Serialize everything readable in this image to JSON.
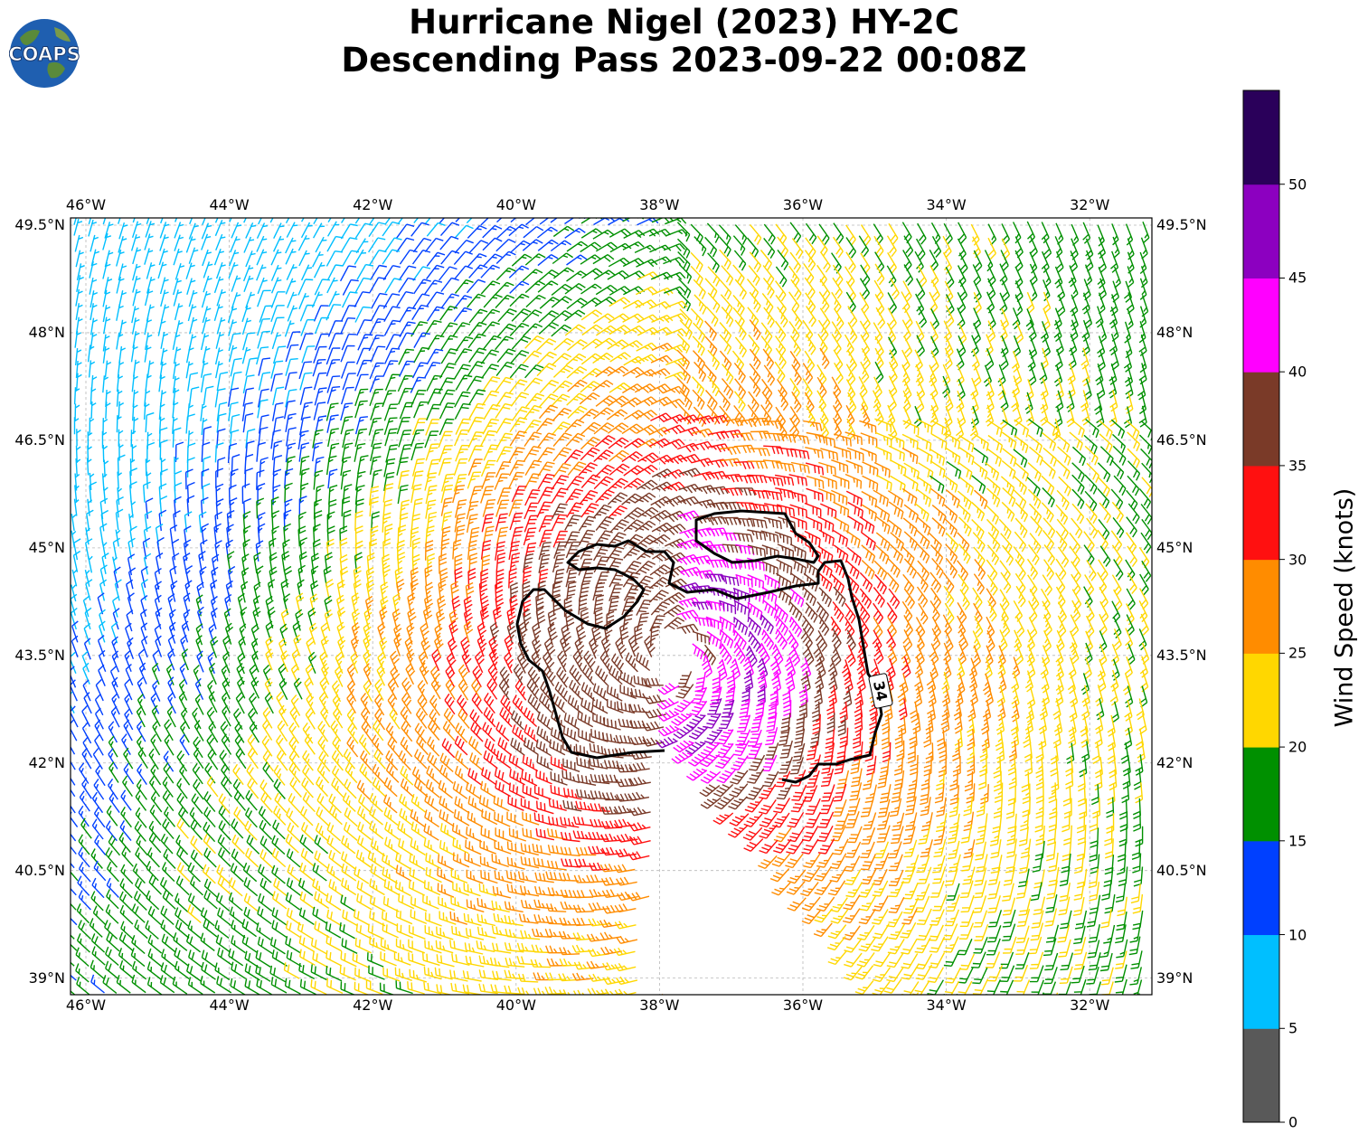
{
  "header": {
    "title_line1": "Hurricane Nigel (2023) HY-2C",
    "title_line2": "Descending Pass 2023-09-22 00:08Z",
    "logo_text": "COAPS"
  },
  "axes": {
    "lon_ticks": [
      "46°W",
      "44°W",
      "42°W",
      "40°W",
      "38°W",
      "36°W",
      "34°W",
      "32°W"
    ],
    "lat_ticks": [
      "49.5°N",
      "48°N",
      "46.5°N",
      "45°N",
      "43.5°N",
      "42°N",
      "40.5°N",
      "39°N"
    ],
    "lon_values": [
      -46,
      -44,
      -42,
      -40,
      -38,
      -36,
      -34,
      -32
    ],
    "lat_values": [
      49.5,
      48,
      46.5,
      45,
      43.5,
      42,
      40.5,
      39
    ],
    "lon_range": [
      -46.2,
      -31.1
    ],
    "lat_range": [
      38.8,
      49.6
    ],
    "grid": true
  },
  "colorbar": {
    "label": "Wind Speed (knots)",
    "ticks": [
      "0",
      "5",
      "10",
      "15",
      "20",
      "25",
      "30",
      "35",
      "40",
      "45",
      "50"
    ],
    "bins": [
      {
        "from": 0,
        "to": 5,
        "color": "#595959"
      },
      {
        "from": 5,
        "to": 10,
        "color": "#00bfff"
      },
      {
        "from": 10,
        "to": 15,
        "color": "#0040ff"
      },
      {
        "from": 15,
        "to": 20,
        "color": "#009000"
      },
      {
        "from": 20,
        "to": 25,
        "color": "#ffd700"
      },
      {
        "from": 25,
        "to": 30,
        "color": "#ff8c00"
      },
      {
        "from": 30,
        "to": 35,
        "color": "#ff1010"
      },
      {
        "from": 35,
        "to": 40,
        "color": "#7a3a28"
      },
      {
        "from": 40,
        "to": 45,
        "color": "#ff00ff"
      },
      {
        "from": 45,
        "to": 50,
        "color": "#8c00c0"
      },
      {
        "from": 50,
        "to": 55,
        "color": "#2a005a"
      }
    ]
  },
  "contour": {
    "label": "34",
    "level_knots": 34
  },
  "chart_data": {
    "type": "wind-barb map",
    "center_approx": {
      "lon": -37.8,
      "lat": 43.5
    },
    "wind_field_knots": [
      {
        "region": "near center (east side)",
        "speed": "40-50"
      },
      {
        "region": "within 34-kt contour",
        "speed": "35-40"
      },
      {
        "region": "ring around core",
        "speed": "30-35"
      },
      {
        "region": "outer ring",
        "speed": "25-30"
      },
      {
        "region": "broad field",
        "speed": "20-25"
      },
      {
        "region": "far field",
        "speed": "15-20"
      },
      {
        "region": "northwest",
        "speed": "5-15"
      }
    ]
  }
}
